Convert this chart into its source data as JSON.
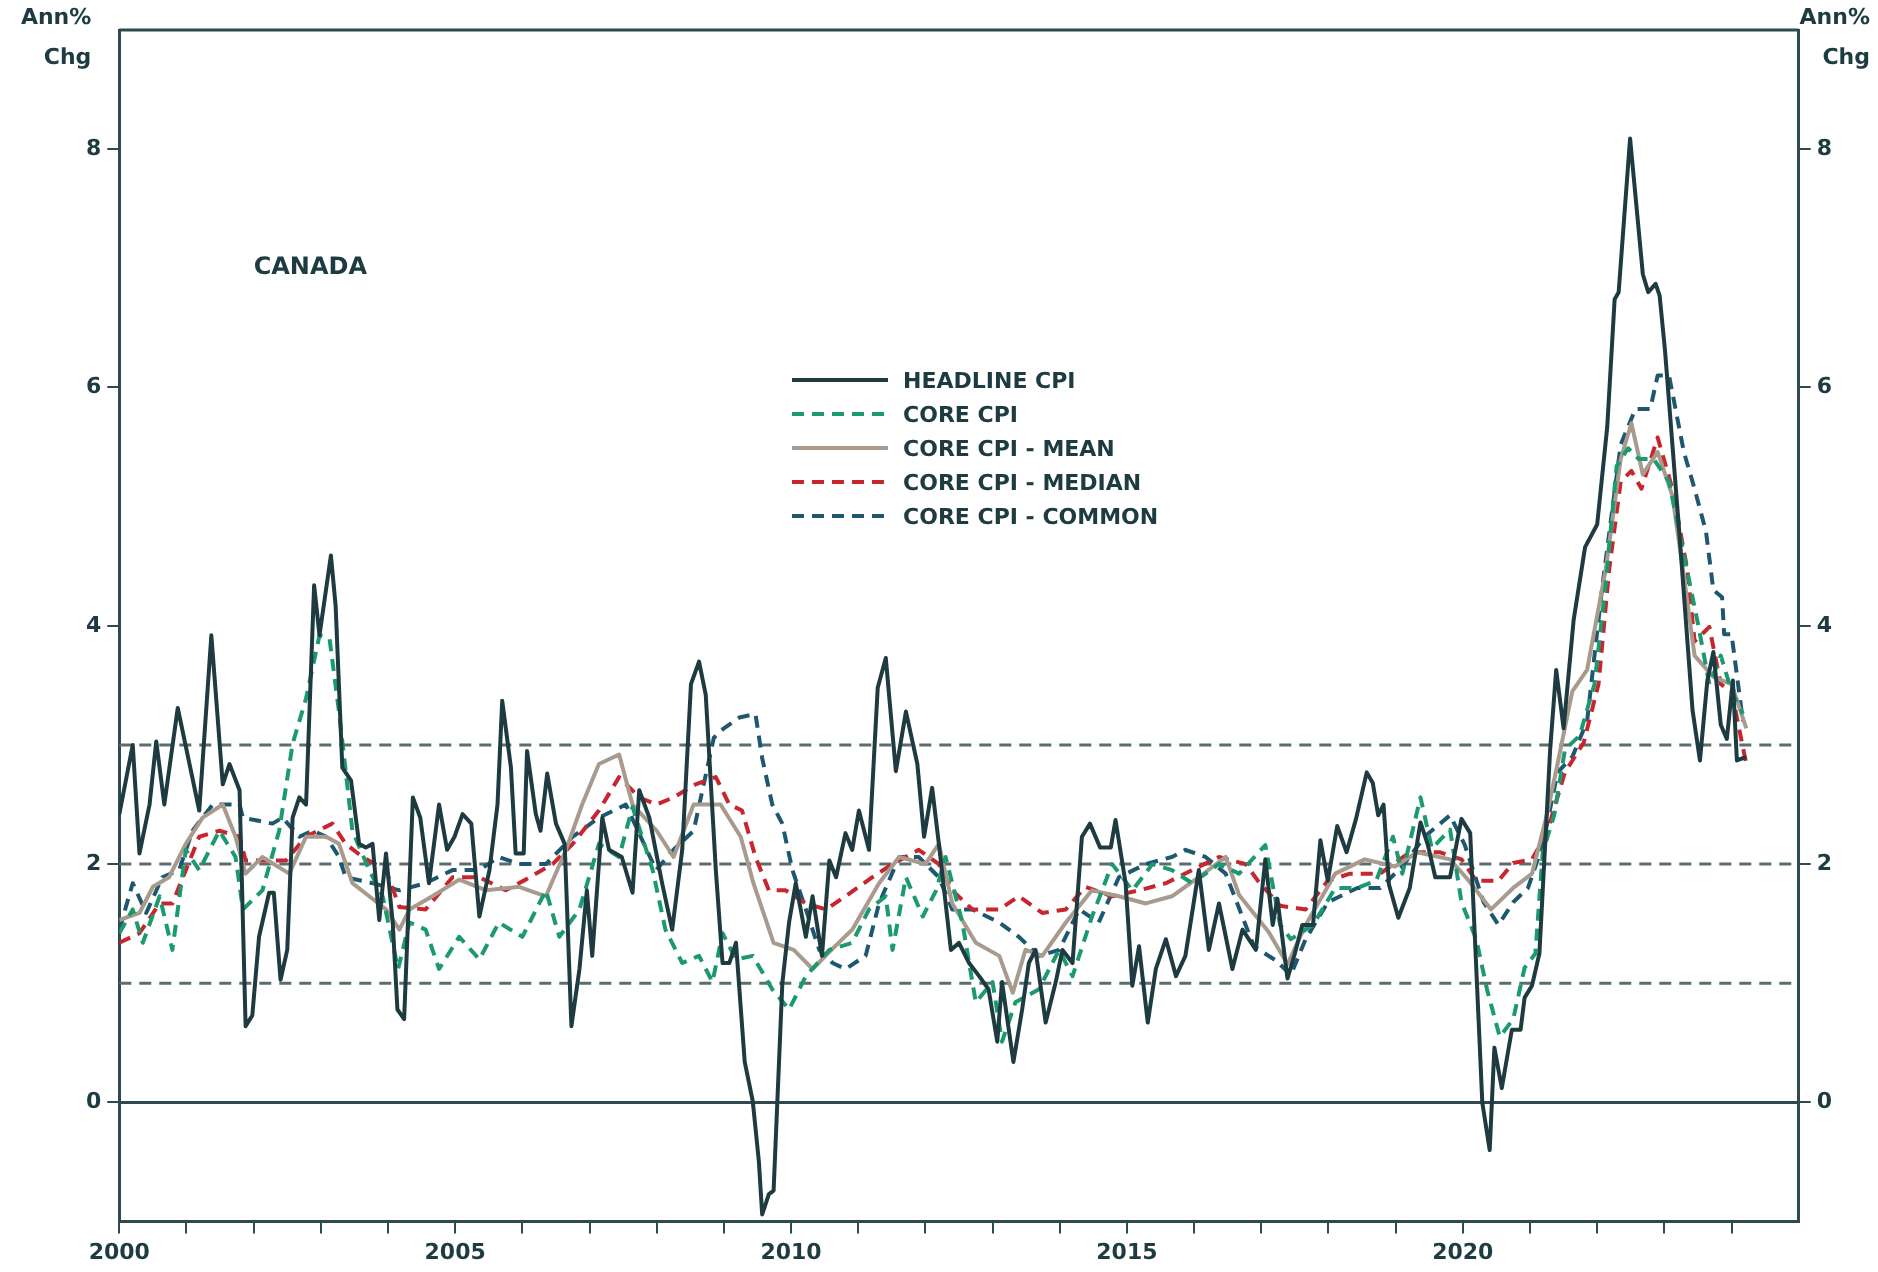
{
  "chart_data": {
    "type": "line",
    "ylabel": "Ann%\nChg",
    "y2label": "Ann%\nChg",
    "annotations": [
      "CANADA"
    ],
    "xlim": [
      2000,
      2025
    ],
    "xticks": [
      2000,
      {
        "value": 2001,
        "label": null
      },
      {
        "value": 2002,
        "label": null
      },
      {
        "value": 2003,
        "label": null
      },
      {
        "value": 2004,
        "label": null
      },
      2005,
      {
        "value": 2006,
        "label": null
      },
      {
        "value": 2007,
        "label": null
      },
      {
        "value": 2008,
        "label": null
      },
      {
        "value": 2009,
        "label": null
      },
      2010,
      {
        "value": 2011,
        "label": null
      },
      {
        "value": 2012,
        "label": null
      },
      {
        "value": 2013,
        "label": null
      },
      {
        "value": 2014,
        "label": null
      },
      2015,
      {
        "value": 2016,
        "label": null
      },
      {
        "value": 2017,
        "label": null
      },
      {
        "value": 2018,
        "label": null
      },
      {
        "value": 2019,
        "label": null
      },
      2020,
      {
        "value": 2021,
        "label": null
      },
      {
        "value": 2022,
        "label": null
      },
      {
        "value": 2023,
        "label": null
      },
      {
        "value": 2024,
        "label": null
      }
    ],
    "ylim": [
      -1,
      9
    ],
    "yticks": [
      0,
      2,
      4,
      6,
      8
    ],
    "y2lim": [
      -1,
      9
    ],
    "y2ticks": [
      0,
      2,
      4,
      6,
      8
    ],
    "grid": false,
    "legend": "top",
    "marker": "none",
    "ref_lines": [
      {
        "axis": "y",
        "value": 0,
        "color": "#2e4a4f",
        "line_style": "solid"
      },
      {
        "axis": "y",
        "value": 1,
        "color": "#5a6e72",
        "line_style": "dashed"
      },
      {
        "axis": "y",
        "value": 2,
        "color": "#5a6e72",
        "line_style": "dashed"
      },
      {
        "axis": "y",
        "value": 3,
        "color": "#5a6e72",
        "line_style": "dashed"
      }
    ],
    "series": [
      {
        "name": "HEADLINE CPI",
        "color": "#1d3b40",
        "line_style": "solid",
        "x": [
          2000.0,
          2000.2,
          2000.3,
          2000.45,
          2000.55,
          2000.67,
          2000.87,
          2001.19,
          2001.37,
          2001.54,
          2001.64,
          2001.79,
          2001.88,
          2001.98,
          2002.08,
          2002.23,
          2002.3,
          2002.4,
          2002.5,
          2002.58,
          2002.68,
          2002.78,
          2002.9,
          2002.98,
          2003.15,
          2003.22,
          2003.32,
          2003.45,
          2003.57,
          2003.67,
          2003.77,
          2003.87,
          2003.97,
          2004.07,
          2004.14,
          2004.24,
          2004.37,
          2004.48,
          2004.61,
          2004.76,
          2004.88,
          2004.99,
          2005.11,
          2005.24,
          2005.36,
          2005.51,
          2005.63,
          2005.7,
          2005.83,
          2005.9,
          2006.02,
          2006.07,
          2006.2,
          2006.27,
          2006.37,
          2006.5,
          2006.63,
          2006.73,
          2006.85,
          2006.96,
          2007.04,
          2007.19,
          2007.29,
          2007.48,
          2007.64,
          2007.74,
          2007.89,
          2008.08,
          2008.23,
          2008.38,
          2008.51,
          2008.63,
          2008.73,
          2008.88,
          2008.98,
          2009.08,
          2009.18,
          2009.31,
          2009.43,
          2009.52,
          2009.57,
          2009.67,
          2009.74,
          2009.87,
          2009.97,
          2010.07,
          2010.22,
          2010.32,
          2010.46,
          2010.57,
          2010.67,
          2010.81,
          2010.91,
          2011.01,
          2011.16,
          2011.29,
          2011.41,
          2011.56,
          2011.71,
          2011.88,
          2011.98,
          2012.1,
          2012.2,
          2012.38,
          2012.5,
          2012.65,
          2012.8,
          2012.94,
          2013.07,
          2013.14,
          2013.31,
          2013.44,
          2013.54,
          2013.64,
          2013.79,
          2013.94,
          2014.04,
          2014.19,
          2014.33,
          2014.45,
          2014.6,
          2014.76,
          2014.83,
          2014.98,
          2015.08,
          2015.18,
          2015.31,
          2015.43,
          2015.58,
          2015.73,
          2015.87,
          2016.07,
          2016.22,
          2016.37,
          2016.57,
          2016.72,
          2016.92,
          2017.06,
          2017.17,
          2017.24,
          2017.39,
          2017.5,
          2017.61,
          2017.77,
          2017.88,
          2017.99,
          2018.13,
          2018.27,
          2018.41,
          2018.57,
          2018.66,
          2018.74,
          2018.82,
          2018.9,
          2019.04,
          2019.21,
          2019.37,
          2019.48,
          2019.59,
          2019.81,
          2019.98,
          2020.11,
          2020.29,
          2020.4,
          2020.47,
          2020.58,
          2020.73,
          2020.86,
          2020.92,
          2021.03,
          2021.14,
          2021.3,
          2021.39,
          2021.5,
          2021.65,
          2021.82,
          2022.0,
          2022.15,
          2022.26,
          2022.32,
          2022.49,
          2022.68,
          2022.76,
          2022.87,
          2022.93,
          2023.01,
          2023.23,
          2023.42,
          2023.53,
          2023.64,
          2023.73,
          2023.84,
          2023.93,
          2024.02,
          2024.08,
          2024.22
        ],
        "values": [
          2.42,
          3.0,
          2.09,
          2.5,
          3.03,
          2.5,
          3.31,
          2.45,
          3.92,
          2.67,
          2.84,
          2.62,
          0.64,
          0.73,
          1.39,
          1.76,
          1.76,
          1.03,
          1.28,
          2.39,
          2.56,
          2.5,
          4.34,
          3.92,
          4.59,
          4.17,
          2.81,
          2.7,
          2.17,
          2.14,
          2.17,
          1.53,
          2.09,
          1.51,
          0.78,
          0.7,
          2.56,
          2.39,
          1.84,
          2.5,
          2.12,
          2.23,
          2.42,
          2.34,
          1.56,
          1.95,
          2.5,
          3.37,
          2.81,
          2.09,
          2.09,
          2.95,
          2.42,
          2.28,
          2.76,
          2.34,
          2.17,
          0.64,
          1.12,
          1.78,
          1.23,
          2.39,
          2.12,
          2.06,
          1.76,
          2.62,
          2.39,
          1.84,
          1.45,
          2.12,
          3.51,
          3.7,
          3.42,
          1.95,
          1.17,
          1.17,
          1.34,
          0.34,
          0.01,
          -0.49,
          -0.94,
          -0.77,
          -0.74,
          1.0,
          1.51,
          1.84,
          1.39,
          1.73,
          1.23,
          2.03,
          1.89,
          2.26,
          2.12,
          2.45,
          2.12,
          3.48,
          3.73,
          2.78,
          3.28,
          2.84,
          2.23,
          2.64,
          2.17,
          1.28,
          1.34,
          1.17,
          1.06,
          0.95,
          0.51,
          1.01,
          0.34,
          0.78,
          1.17,
          1.28,
          0.67,
          1.01,
          1.28,
          1.17,
          2.23,
          2.34,
          2.14,
          2.14,
          2.37,
          1.84,
          0.98,
          1.31,
          0.67,
          1.12,
          1.37,
          1.06,
          1.23,
          1.95,
          1.28,
          1.67,
          1.12,
          1.45,
          1.28,
          2.04,
          1.49,
          1.71,
          1.04,
          1.25,
          1.49,
          1.49,
          2.2,
          1.86,
          2.32,
          2.1,
          2.38,
          2.77,
          2.68,
          2.41,
          2.5,
          1.83,
          1.55,
          1.8,
          2.35,
          2.16,
          1.89,
          1.89,
          2.38,
          2.26,
          0.0,
          -0.4,
          0.46,
          0.12,
          0.61,
          0.61,
          0.88,
          0.98,
          1.25,
          2.96,
          3.63,
          3.14,
          4.05,
          4.66,
          4.85,
          5.67,
          6.74,
          6.8,
          8.09,
          6.95,
          6.8,
          6.87,
          6.77,
          6.31,
          4.73,
          3.29,
          2.87,
          3.54,
          3.78,
          3.17,
          3.05,
          3.54,
          2.87,
          2.9
        ]
      },
      {
        "name": "CORE CPI",
        "color": "#1a9a6e",
        "line_style": "dashed",
        "x": [
          2000.0,
          2000.2,
          2000.35,
          2000.6,
          2000.79,
          2000.99,
          2001.19,
          2001.49,
          2001.73,
          2001.84,
          2002.13,
          2002.38,
          2002.58,
          2002.78,
          2002.98,
          2003.13,
          2003.27,
          2003.47,
          2003.72,
          2003.92,
          2004.15,
          2004.32,
          2004.56,
          2004.76,
          2005.06,
          2005.36,
          2005.65,
          2006.0,
          2006.35,
          2006.55,
          2006.85,
          2007.14,
          2007.44,
          2007.64,
          2007.94,
          2008.13,
          2008.38,
          2008.63,
          2008.83,
          2008.98,
          2009.18,
          2009.43,
          2009.72,
          2009.97,
          2010.22,
          2010.57,
          2010.91,
          2011.16,
          2011.41,
          2011.51,
          2011.71,
          2011.96,
          2012.16,
          2012.3,
          2012.55,
          2012.75,
          2013.0,
          2013.14,
          2013.34,
          2013.69,
          2013.99,
          2014.19,
          2014.48,
          2014.78,
          2015.08,
          2015.38,
          2015.67,
          2015.97,
          2016.37,
          2016.67,
          2017.06,
          2017.28,
          2017.44,
          2017.77,
          2018.1,
          2018.43,
          2018.71,
          2018.96,
          2019.1,
          2019.37,
          2019.54,
          2019.81,
          2019.98,
          2020.2,
          2020.36,
          2020.55,
          2020.75,
          2020.92,
          2021.08,
          2021.19,
          2021.36,
          2021.52,
          2021.74,
          2021.96,
          2022.13,
          2022.29,
          2022.46,
          2022.62,
          2022.84,
          2023.07,
          2023.29,
          2023.51,
          2023.67,
          2023.84,
          2024.0,
          2024.17
        ],
        "values": [
          1.42,
          1.62,
          1.34,
          1.73,
          1.28,
          2.12,
          1.95,
          2.28,
          2.06,
          1.62,
          1.78,
          2.28,
          3.01,
          3.39,
          3.92,
          3.89,
          3.28,
          2.28,
          1.95,
          1.73,
          1.12,
          1.51,
          1.45,
          1.12,
          1.39,
          1.2,
          1.51,
          1.39,
          1.78,
          1.39,
          1.62,
          2.17,
          2.06,
          2.48,
          1.95,
          1.45,
          1.17,
          1.23,
          1.01,
          1.42,
          1.2,
          1.23,
          0.95,
          0.78,
          1.06,
          1.28,
          1.34,
          1.62,
          1.73,
          1.28,
          1.89,
          1.56,
          1.78,
          2.06,
          1.51,
          0.84,
          1.01,
          0.51,
          0.84,
          0.95,
          1.28,
          1.06,
          1.56,
          2.0,
          1.78,
          2.0,
          1.95,
          1.84,
          2.0,
          1.92,
          2.16,
          1.49,
          1.37,
          1.49,
          1.8,
          1.8,
          1.86,
          2.23,
          1.92,
          2.56,
          2.13,
          2.29,
          1.68,
          1.37,
          0.95,
          0.55,
          0.7,
          1.13,
          1.25,
          2.1,
          2.41,
          2.96,
          3.08,
          3.51,
          4.36,
          5.34,
          5.49,
          5.4,
          5.4,
          5.21,
          4.6,
          3.99,
          3.51,
          3.75,
          3.45,
          3.26
        ]
      },
      {
        "name": "CORE CPI - MEAN",
        "color": "#a89a8c",
        "line_style": "solid",
        "x": [
          2000.0,
          2000.3,
          2000.5,
          2000.74,
          2000.99,
          2001.24,
          2001.54,
          2001.73,
          2001.88,
          2002.13,
          2002.53,
          2002.78,
          2003.08,
          2003.27,
          2003.47,
          2003.72,
          2003.97,
          2004.17,
          2004.32,
          2004.66,
          2005.06,
          2005.46,
          2005.95,
          2006.35,
          2006.65,
          2006.89,
          2007.14,
          2007.44,
          2007.64,
          2008.0,
          2008.25,
          2008.55,
          2008.95,
          2009.25,
          2009.44,
          2009.74,
          2010.04,
          2010.32,
          2010.6,
          2010.91,
          2011.31,
          2011.61,
          2012.0,
          2012.2,
          2012.4,
          2012.75,
          2013.1,
          2013.3,
          2013.49,
          2013.74,
          2014.09,
          2014.48,
          2014.88,
          2015.28,
          2015.67,
          2016.07,
          2016.47,
          2016.67,
          2017.11,
          2017.39,
          2017.66,
          2018.1,
          2018.54,
          2018.99,
          2019.32,
          2019.81,
          2020.09,
          2020.42,
          2020.75,
          2021.03,
          2021.25,
          2021.41,
          2021.63,
          2021.85,
          2022.13,
          2022.35,
          2022.51,
          2022.68,
          2022.9,
          2023.12,
          2023.29,
          2023.45,
          2023.73,
          2024.0,
          2024.22
        ],
        "values": [
          1.53,
          1.59,
          1.81,
          1.89,
          2.17,
          2.39,
          2.5,
          2.23,
          1.92,
          2.06,
          1.92,
          2.23,
          2.23,
          2.17,
          1.84,
          1.73,
          1.62,
          1.45,
          1.62,
          1.73,
          1.87,
          1.78,
          1.81,
          1.73,
          2.12,
          2.5,
          2.84,
          2.92,
          2.5,
          2.28,
          2.06,
          2.5,
          2.5,
          2.23,
          1.84,
          1.34,
          1.28,
          1.12,
          1.28,
          1.45,
          1.84,
          2.06,
          2.0,
          2.17,
          1.67,
          1.34,
          1.23,
          0.92,
          1.28,
          1.23,
          1.51,
          1.78,
          1.73,
          1.67,
          1.73,
          1.89,
          2.06,
          1.74,
          1.43,
          1.16,
          1.49,
          1.92,
          2.04,
          1.98,
          2.1,
          2.04,
          1.86,
          1.62,
          1.8,
          1.92,
          2.41,
          2.84,
          3.45,
          3.63,
          4.48,
          5.4,
          5.7,
          5.27,
          5.46,
          5.09,
          4.42,
          3.75,
          3.57,
          3.51,
          3.14
        ]
      },
      {
        "name": "CORE CPI - MEDIAN",
        "color": "#c8262e",
        "line_style": "dashed",
        "x": [
          2000.0,
          2000.3,
          2000.6,
          2000.79,
          2001.19,
          2001.49,
          2001.79,
          2001.88,
          2002.48,
          2002.78,
          2003.17,
          2003.37,
          2003.62,
          2003.97,
          2004.17,
          2004.56,
          2004.96,
          2005.36,
          2005.75,
          2006.05,
          2006.45,
          2006.75,
          2007.14,
          2007.44,
          2007.74,
          2008.0,
          2008.25,
          2008.58,
          2008.88,
          2009.08,
          2009.27,
          2009.47,
          2009.67,
          2009.92,
          2010.22,
          2010.52,
          2010.81,
          2011.21,
          2011.51,
          2011.9,
          2012.2,
          2012.4,
          2012.7,
          2013.1,
          2013.39,
          2013.74,
          2014.09,
          2014.38,
          2014.78,
          2015.18,
          2015.58,
          2015.97,
          2016.37,
          2016.77,
          2016.95,
          2017.28,
          2017.66,
          2017.99,
          2018.32,
          2018.77,
          2019.21,
          2019.65,
          2019.98,
          2020.2,
          2020.53,
          2020.75,
          2021.03,
          2021.25,
          2021.52,
          2021.8,
          2022.02,
          2022.18,
          2022.35,
          2022.51,
          2022.66,
          2022.9,
          2023.12,
          2023.34,
          2023.45,
          2023.67,
          2023.84,
          2024.0,
          2024.22
        ],
        "values": [
          1.34,
          1.42,
          1.67,
          1.67,
          2.23,
          2.28,
          2.23,
          2.03,
          2.03,
          2.23,
          2.34,
          2.17,
          2.06,
          1.95,
          1.64,
          1.62,
          1.89,
          1.89,
          1.78,
          1.87,
          2.0,
          2.17,
          2.45,
          2.73,
          2.56,
          2.5,
          2.56,
          2.67,
          2.73,
          2.5,
          2.45,
          2.06,
          1.78,
          1.78,
          1.67,
          1.62,
          1.73,
          1.89,
          2.0,
          2.12,
          2.0,
          1.78,
          1.62,
          1.62,
          1.73,
          1.59,
          1.62,
          1.81,
          1.73,
          1.78,
          1.84,
          1.95,
          2.06,
          2.0,
          1.86,
          1.65,
          1.62,
          1.86,
          1.92,
          1.92,
          2.1,
          2.1,
          2.04,
          1.86,
          1.86,
          2.01,
          2.04,
          2.26,
          2.77,
          3.02,
          3.51,
          4.48,
          5.21,
          5.3,
          5.15,
          5.58,
          5.15,
          4.48,
          3.87,
          3.99,
          3.51,
          3.45,
          2.84
        ]
      },
      {
        "name": "CORE CPI - COMMON",
        "color": "#1e5870",
        "line_style": "dashed",
        "x": [
          2000.0,
          2000.2,
          2000.4,
          2000.64,
          2000.89,
          2001.09,
          2001.39,
          2001.79,
          2001.84,
          2002.28,
          2002.43,
          2002.68,
          2002.88,
          2003.08,
          2003.27,
          2003.37,
          2003.77,
          2004.17,
          2004.56,
          2004.96,
          2005.36,
          2005.65,
          2005.95,
          2006.35,
          2006.75,
          2007.14,
          2007.54,
          2007.99,
          2008.25,
          2008.55,
          2008.85,
          2009.0,
          2009.23,
          2009.47,
          2009.57,
          2009.72,
          2009.87,
          2010.02,
          2010.22,
          2010.42,
          2010.62,
          2010.81,
          2011.11,
          2011.31,
          2011.61,
          2011.9,
          2012.2,
          2012.4,
          2012.7,
          2013.1,
          2013.39,
          2013.69,
          2013.99,
          2014.29,
          2014.58,
          2014.88,
          2015.28,
          2015.67,
          2015.87,
          2016.17,
          2016.47,
          2016.89,
          2017.22,
          2017.44,
          2017.66,
          2017.99,
          2018.43,
          2018.77,
          2019.1,
          2019.43,
          2019.81,
          2020.03,
          2020.31,
          2020.53,
          2020.75,
          2020.97,
          2021.19,
          2021.41,
          2021.63,
          2021.85,
          2022.07,
          2022.35,
          2022.57,
          2022.79,
          2022.9,
          2023.07,
          2023.29,
          2023.45,
          2023.62,
          2023.73,
          2023.86,
          2023.89,
          2024.0,
          2024.17
        ],
        "values": [
          1.45,
          1.84,
          1.59,
          1.89,
          1.95,
          2.28,
          2.5,
          2.5,
          2.39,
          2.34,
          2.39,
          2.23,
          2.28,
          2.23,
          2.06,
          1.89,
          1.84,
          1.78,
          1.84,
          1.95,
          1.95,
          2.06,
          2.0,
          2.0,
          2.23,
          2.39,
          2.5,
          1.95,
          2.12,
          2.28,
          3.06,
          3.14,
          3.23,
          3.26,
          2.89,
          2.5,
          2.34,
          1.95,
          1.62,
          1.28,
          1.17,
          1.12,
          1.23,
          1.67,
          2.06,
          2.06,
          1.89,
          1.62,
          1.62,
          1.51,
          1.39,
          1.23,
          1.28,
          1.62,
          1.51,
          1.89,
          2.0,
          2.06,
          2.12,
          2.06,
          1.92,
          1.31,
          1.19,
          1.07,
          1.37,
          1.68,
          1.8,
          1.8,
          1.98,
          2.23,
          2.41,
          2.16,
          1.68,
          1.49,
          1.68,
          1.8,
          2.16,
          2.77,
          2.9,
          3.2,
          4.3,
          5.52,
          5.82,
          5.82,
          6.1,
          6.1,
          5.46,
          5.15,
          4.79,
          4.3,
          4.24,
          3.93,
          3.93,
          3.2
        ]
      }
    ]
  }
}
